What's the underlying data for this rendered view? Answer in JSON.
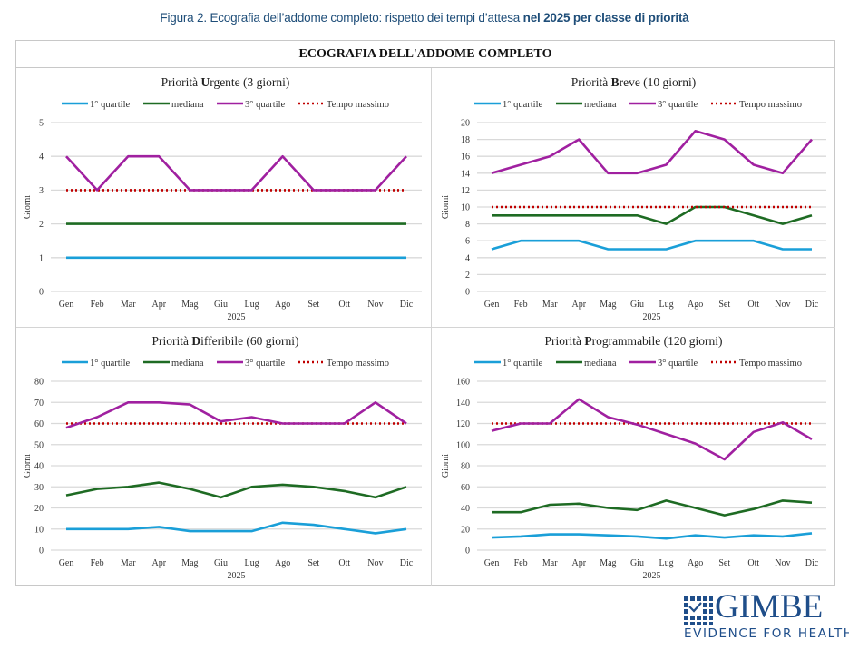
{
  "figure": {
    "title_regular": "Figura 2. Ecografia dell’addome completo: rispetto dei tempi d’attesa ",
    "title_bold": "nel 2025 per classe di priorità"
  },
  "frame": {
    "header": "ECOGRAFIA DELL'ADDOME COMPLETO"
  },
  "legend": {
    "q1": "1° quartile",
    "median": "mediana",
    "q3": "3° quartile",
    "max": "Tempo massimo"
  },
  "colors": {
    "q1": "#1a9fd8",
    "median": "#1e6b23",
    "q3": "#a020a0",
    "max": "#c00000",
    "grid": "#d9d9d9",
    "title_blue": "#1f4e79",
    "logo_blue": "#1f4e8a"
  },
  "logo": {
    "name": "GIMBE",
    "tagline": "EVIDENCE FOR HEALTH"
  },
  "chart_data": [
    {
      "type": "line",
      "title_prefix": "Priorità ",
      "title_initial": "U",
      "title_rest": "rgente (3 giorni)",
      "xlabel": "2025",
      "ylabel": "Giorni",
      "categories": [
        "Gen",
        "Feb",
        "Mar",
        "Apr",
        "Mag",
        "Giu",
        "Lug",
        "Ago",
        "Set",
        "Ott",
        "Nov",
        "Dic"
      ],
      "ylim": [
        0,
        5
      ],
      "yticks": [
        0,
        1,
        2,
        3,
        4,
        5
      ],
      "grid": true,
      "legend_position": "top",
      "series": [
        {
          "name": "1° quartile",
          "values": [
            1,
            1,
            1,
            1,
            1,
            1,
            1,
            1,
            1,
            1,
            1,
            1
          ]
        },
        {
          "name": "mediana",
          "values": [
            2,
            2,
            2,
            2,
            2,
            2,
            2,
            2,
            2,
            2,
            2,
            2
          ]
        },
        {
          "name": "3° quartile",
          "values": [
            4,
            3,
            4,
            4,
            3,
            3,
            3,
            4,
            3,
            3,
            3,
            4
          ]
        },
        {
          "name": "Tempo massimo",
          "values": [
            3,
            3,
            3,
            3,
            3,
            3,
            3,
            3,
            3,
            3,
            3,
            3
          ]
        }
      ]
    },
    {
      "type": "line",
      "title_prefix": "Priorità ",
      "title_initial": "B",
      "title_rest": "reve (10 giorni)",
      "xlabel": "2025",
      "ylabel": "Giorni",
      "categories": [
        "Gen",
        "Feb",
        "Mar",
        "Apr",
        "Mag",
        "Giu",
        "Lug",
        "Ago",
        "Set",
        "Ott",
        "Nov",
        "Dic"
      ],
      "ylim": [
        0,
        20
      ],
      "yticks": [
        0,
        2,
        4,
        6,
        8,
        10,
        12,
        14,
        16,
        18,
        20
      ],
      "grid": true,
      "legend_position": "top",
      "series": [
        {
          "name": "1° quartile",
          "values": [
            5,
            6,
            6,
            6,
            5,
            5,
            5,
            6,
            6,
            6,
            5,
            5
          ]
        },
        {
          "name": "mediana",
          "values": [
            9,
            9,
            9,
            9,
            9,
            9,
            8,
            10,
            10,
            9,
            8,
            9
          ]
        },
        {
          "name": "3° quartile",
          "values": [
            14,
            15,
            16,
            18,
            14,
            14,
            15,
            19,
            18,
            15,
            14,
            18
          ]
        },
        {
          "name": "Tempo massimo",
          "values": [
            10,
            10,
            10,
            10,
            10,
            10,
            10,
            10,
            10,
            10,
            10,
            10
          ]
        }
      ]
    },
    {
      "type": "line",
      "title_prefix": "Priorità ",
      "title_initial": "D",
      "title_rest": "ifferibile (60 giorni)",
      "xlabel": "2025",
      "ylabel": "Giorni",
      "categories": [
        "Gen",
        "Feb",
        "Mar",
        "Apr",
        "Mag",
        "Giu",
        "Lug",
        "Ago",
        "Set",
        "Ott",
        "Nov",
        "Dic"
      ],
      "ylim": [
        0,
        80
      ],
      "yticks": [
        0,
        10,
        20,
        30,
        40,
        50,
        60,
        70,
        80
      ],
      "grid": true,
      "legend_position": "top",
      "series": [
        {
          "name": "1° quartile",
          "values": [
            10,
            10,
            10,
            11,
            9,
            9,
            9,
            13,
            12,
            10,
            8,
            10
          ]
        },
        {
          "name": "mediana",
          "values": [
            26,
            29,
            30,
            32,
            29,
            25,
            30,
            31,
            30,
            28,
            25,
            30
          ]
        },
        {
          "name": "3° quartile",
          "values": [
            58,
            63,
            70,
            70,
            69,
            61,
            63,
            60,
            60,
            60,
            70,
            60
          ]
        },
        {
          "name": "Tempo massimo",
          "values": [
            60,
            60,
            60,
            60,
            60,
            60,
            60,
            60,
            60,
            60,
            60,
            60
          ]
        }
      ]
    },
    {
      "type": "line",
      "title_prefix": "Priorità ",
      "title_initial": "P",
      "title_rest": "rogrammabile (120 giorni)",
      "xlabel": "2025",
      "ylabel": "Giorni",
      "categories": [
        "Gen",
        "Feb",
        "Mar",
        "Apr",
        "Mag",
        "Giu",
        "Lug",
        "Ago",
        "Set",
        "Ott",
        "Nov",
        "Dic"
      ],
      "ylim": [
        0,
        160
      ],
      "yticks": [
        0,
        20,
        40,
        60,
        80,
        100,
        120,
        140,
        160
      ],
      "grid": true,
      "legend_position": "top",
      "series": [
        {
          "name": "1° quartile",
          "values": [
            12,
            13,
            15,
            15,
            14,
            13,
            11,
            14,
            12,
            14,
            13,
            16
          ]
        },
        {
          "name": "mediana",
          "values": [
            36,
            36,
            43,
            44,
            40,
            38,
            47,
            40,
            33,
            39,
            47,
            45
          ]
        },
        {
          "name": "3° quartile",
          "values": [
            113,
            120,
            120,
            143,
            126,
            119,
            110,
            101,
            86,
            112,
            121,
            105
          ]
        },
        {
          "name": "Tempo massimo",
          "values": [
            120,
            120,
            120,
            120,
            120,
            120,
            120,
            120,
            120,
            120,
            120,
            120
          ]
        }
      ]
    }
  ]
}
